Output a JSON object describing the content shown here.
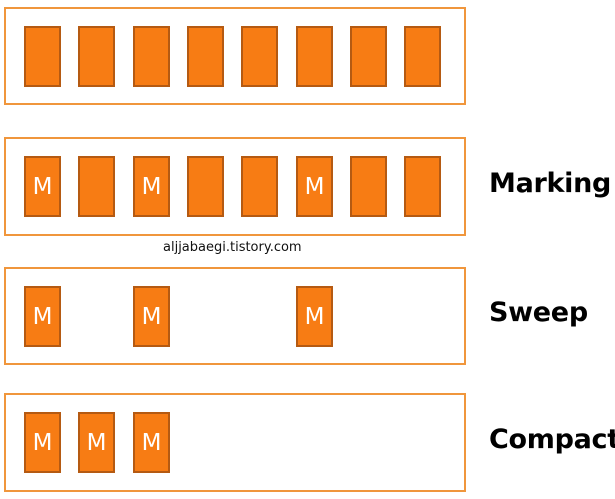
{
  "colors": {
    "object_fill": "#f77c14",
    "object_border": "#b55a12",
    "heap_border": "#f0963c",
    "mark_text": "#ffffff"
  },
  "heaps": [
    {
      "name": "initial-heap",
      "phase_label": "",
      "objects": [
        {
          "slot": 0,
          "mark": ""
        },
        {
          "slot": 1,
          "mark": ""
        },
        {
          "slot": 2,
          "mark": ""
        },
        {
          "slot": 3,
          "mark": ""
        },
        {
          "slot": 4,
          "mark": ""
        },
        {
          "slot": 5,
          "mark": ""
        },
        {
          "slot": 6,
          "mark": ""
        },
        {
          "slot": 7,
          "mark": ""
        }
      ]
    },
    {
      "name": "marking-heap",
      "phase_label": "Marking",
      "objects": [
        {
          "slot": 0,
          "mark": "M"
        },
        {
          "slot": 1,
          "mark": ""
        },
        {
          "slot": 2,
          "mark": "M"
        },
        {
          "slot": 3,
          "mark": ""
        },
        {
          "slot": 4,
          "mark": ""
        },
        {
          "slot": 5,
          "mark": "M"
        },
        {
          "slot": 6,
          "mark": ""
        },
        {
          "slot": 7,
          "mark": ""
        }
      ]
    },
    {
      "name": "sweep-heap",
      "phase_label": "Sweep",
      "objects": [
        {
          "slot": 0,
          "mark": "M"
        },
        {
          "slot": 2,
          "mark": "M"
        },
        {
          "slot": 5,
          "mark": "M"
        }
      ]
    },
    {
      "name": "compact-heap",
      "phase_label": "Compact",
      "objects": [
        {
          "slot": 0,
          "mark": "M"
        },
        {
          "slot": 1,
          "mark": "M"
        },
        {
          "slot": 2,
          "mark": "M"
        }
      ]
    }
  ],
  "watermark": "aljjabaegi.tistory.com"
}
